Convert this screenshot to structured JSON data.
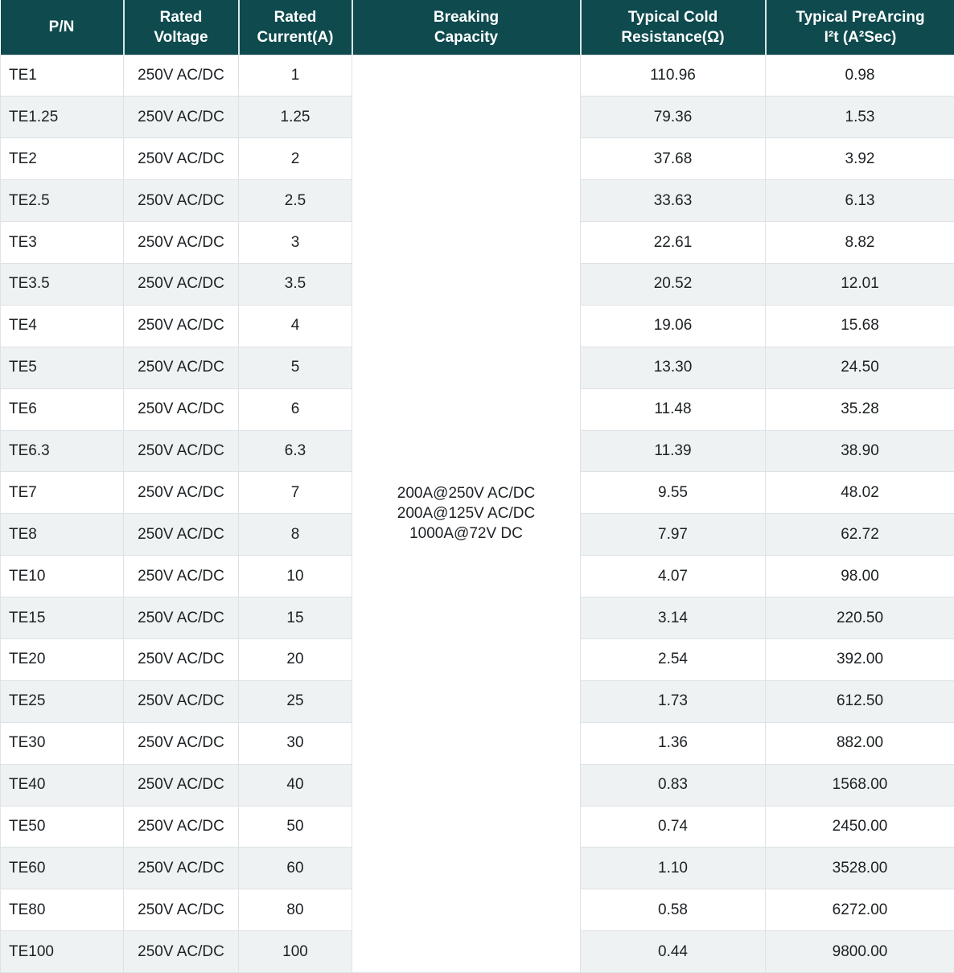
{
  "colors": {
    "header_bg": "#0e4a4e",
    "header_text": "#ffffff",
    "header_divider": "#d7e7e7",
    "border": "#dee2e6",
    "row_bg": "#ffffff",
    "row_alt_bg": "#eef2f3",
    "body_text": "#1d2124"
  },
  "table": {
    "headers": [
      "P/N",
      "Rated\nVoltage",
      "Rated\nCurrent(A)",
      "Breaking\nCapacity",
      "Typical Cold\nResistance(Ω)",
      "Typical PreArcing\nI²t (A²Sec)"
    ],
    "breaking_capacity": {
      "lines": [
        "200A@250V AC/DC",
        "200A@125V AC/DC",
        "1000A@72V DC"
      ]
    },
    "rows": [
      {
        "pn": "TE1",
        "rated_voltage": "250V AC/DC",
        "rated_current": "1",
        "cold_resistance": "110.96",
        "prearcing_i2t": "0.98"
      },
      {
        "pn": "TE1.25",
        "rated_voltage": "250V AC/DC",
        "rated_current": "1.25",
        "cold_resistance": "79.36",
        "prearcing_i2t": "1.53"
      },
      {
        "pn": "TE2",
        "rated_voltage": "250V AC/DC",
        "rated_current": "2",
        "cold_resistance": "37.68",
        "prearcing_i2t": "3.92"
      },
      {
        "pn": "TE2.5",
        "rated_voltage": "250V AC/DC",
        "rated_current": "2.5",
        "cold_resistance": "33.63",
        "prearcing_i2t": "6.13"
      },
      {
        "pn": "TE3",
        "rated_voltage": "250V AC/DC",
        "rated_current": "3",
        "cold_resistance": "22.61",
        "prearcing_i2t": "8.82"
      },
      {
        "pn": "TE3.5",
        "rated_voltage": "250V AC/DC",
        "rated_current": "3.5",
        "cold_resistance": "20.52",
        "prearcing_i2t": "12.01"
      },
      {
        "pn": "TE4",
        "rated_voltage": "250V AC/DC",
        "rated_current": "4",
        "cold_resistance": "19.06",
        "prearcing_i2t": "15.68"
      },
      {
        "pn": "TE5",
        "rated_voltage": "250V AC/DC",
        "rated_current": "5",
        "cold_resistance": "13.30",
        "prearcing_i2t": "24.50"
      },
      {
        "pn": "TE6",
        "rated_voltage": "250V AC/DC",
        "rated_current": "6",
        "cold_resistance": "11.48",
        "prearcing_i2t": "35.28"
      },
      {
        "pn": "TE6.3",
        "rated_voltage": "250V AC/DC",
        "rated_current": "6.3",
        "cold_resistance": "11.39",
        "prearcing_i2t": "38.90"
      },
      {
        "pn": "TE7",
        "rated_voltage": "250V AC/DC",
        "rated_current": "7",
        "cold_resistance": "9.55",
        "prearcing_i2t": "48.02"
      },
      {
        "pn": "TE8",
        "rated_voltage": "250V AC/DC",
        "rated_current": "8",
        "cold_resistance": "7.97",
        "prearcing_i2t": "62.72"
      },
      {
        "pn": "TE10",
        "rated_voltage": "250V AC/DC",
        "rated_current": "10",
        "cold_resistance": "4.07",
        "prearcing_i2t": "98.00"
      },
      {
        "pn": "TE15",
        "rated_voltage": "250V AC/DC",
        "rated_current": "15",
        "cold_resistance": "3.14",
        "prearcing_i2t": "220.50"
      },
      {
        "pn": "TE20",
        "rated_voltage": "250V AC/DC",
        "rated_current": "20",
        "cold_resistance": "2.54",
        "prearcing_i2t": "392.00"
      },
      {
        "pn": "TE25",
        "rated_voltage": "250V AC/DC",
        "rated_current": "25",
        "cold_resistance": "1.73",
        "prearcing_i2t": "612.50"
      },
      {
        "pn": "TE30",
        "rated_voltage": "250V AC/DC",
        "rated_current": "30",
        "cold_resistance": "1.36",
        "prearcing_i2t": "882.00"
      },
      {
        "pn": "TE40",
        "rated_voltage": "250V AC/DC",
        "rated_current": "40",
        "cold_resistance": "0.83",
        "prearcing_i2t": "1568.00"
      },
      {
        "pn": "TE50",
        "rated_voltage": "250V AC/DC",
        "rated_current": "50",
        "cold_resistance": "0.74",
        "prearcing_i2t": "2450.00"
      },
      {
        "pn": "TE60",
        "rated_voltage": "250V AC/DC",
        "rated_current": "60",
        "cold_resistance": "1.10",
        "prearcing_i2t": "3528.00"
      },
      {
        "pn": "TE80",
        "rated_voltage": "250V AC/DC",
        "rated_current": "80",
        "cold_resistance": "0.58",
        "prearcing_i2t": "6272.00"
      },
      {
        "pn": "TE100",
        "rated_voltage": "250V AC/DC",
        "rated_current": "100",
        "cold_resistance": "0.44",
        "prearcing_i2t": "9800.00"
      }
    ]
  }
}
